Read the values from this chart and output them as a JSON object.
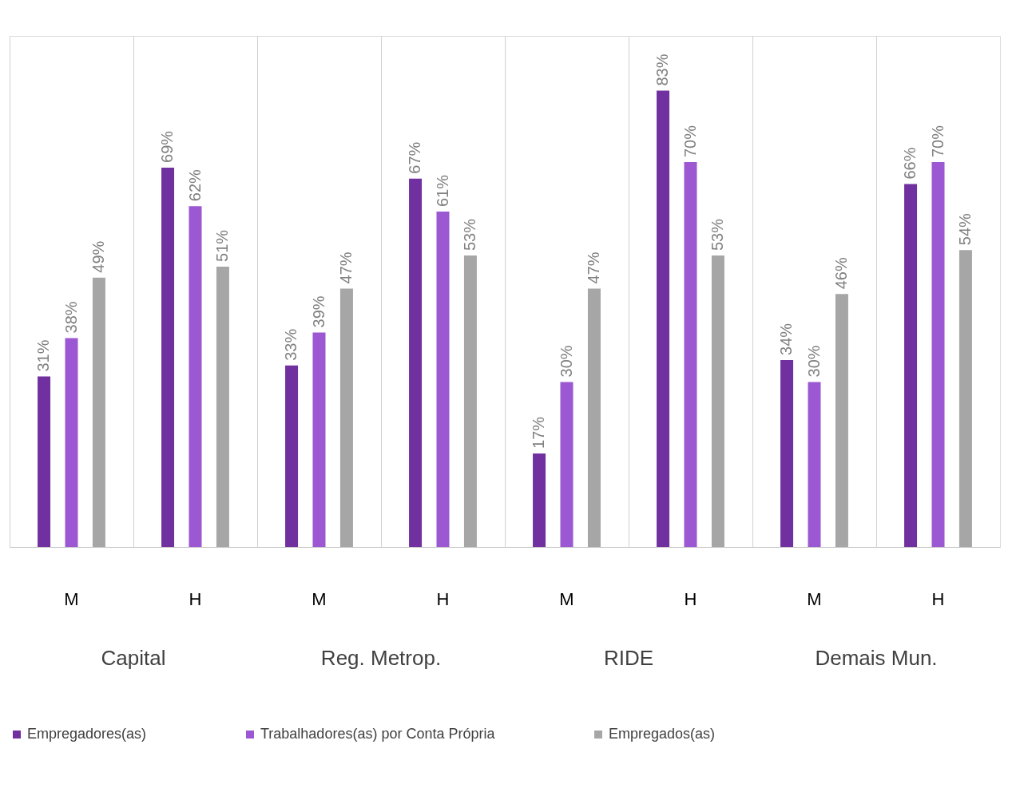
{
  "chart_data": {
    "type": "bar",
    "categories": [
      "M",
      "H",
      "M",
      "H",
      "M",
      "H",
      "M",
      "H"
    ],
    "series": [
      {
        "name": "Empregadores(as)",
        "color": "#7030a0",
        "values": [
          31,
          69,
          33,
          67,
          17,
          83,
          34,
          66
        ],
        "value_labels": [
          "31%",
          "69%",
          "33%",
          "67%",
          "17%",
          "83%",
          "34%",
          "66%"
        ]
      },
      {
        "name": "Trabalhadores(as) por Conta Própria",
        "color": "#9c57d3",
        "values": [
          38,
          62,
          39,
          61,
          30,
          70,
          30,
          70
        ],
        "value_labels": [
          "38%",
          "62%",
          "39%",
          "61%",
          "30%",
          "70%",
          "30%",
          "70%"
        ]
      },
      {
        "name": "Empregados(as)",
        "color": "#a6a6a6",
        "values": [
          49,
          51,
          47,
          53,
          47,
          53,
          46,
          54
        ],
        "value_labels": [
          "49%",
          "51%",
          "47%",
          "53%",
          "47%",
          "53%",
          "46%",
          "54%"
        ]
      }
    ],
    "annotations": [
      "Capital",
      "Reg. Metrop.",
      "RIDE",
      "Demais Mun."
    ],
    "grid": "x",
    "legend": "bottom"
  }
}
